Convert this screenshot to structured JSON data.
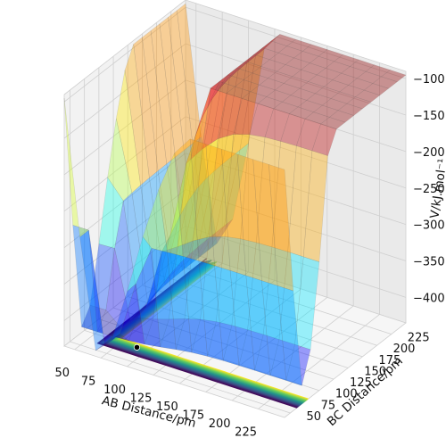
{
  "chart_data": {
    "type": "surface3d",
    "title": "",
    "xlabel": "AB Distance/pm",
    "ylabel": "BC Distance/pm",
    "zlabel": "V/kJ.mol⁻¹",
    "x_ticks": [
      50,
      75,
      100,
      125,
      150,
      175,
      200,
      225
    ],
    "y_ticks": [
      50,
      75,
      100,
      125,
      150,
      175,
      200,
      225
    ],
    "z_ticks": [
      -100,
      -150,
      -200,
      -250,
      -300,
      -350,
      -400
    ],
    "xlim": [
      40,
      250
    ],
    "ylim": [
      40,
      250
    ],
    "zlim": [
      -435,
      -90
    ],
    "grid": true,
    "surface_colormap": "jet (transparent)",
    "contour_colormap": "viridis",
    "contour_levels_approx": 30,
    "trajectory_marker_color": "#000000",
    "trajectory_start": {
      "AB": 90,
      "BC": 75
    }
  }
}
